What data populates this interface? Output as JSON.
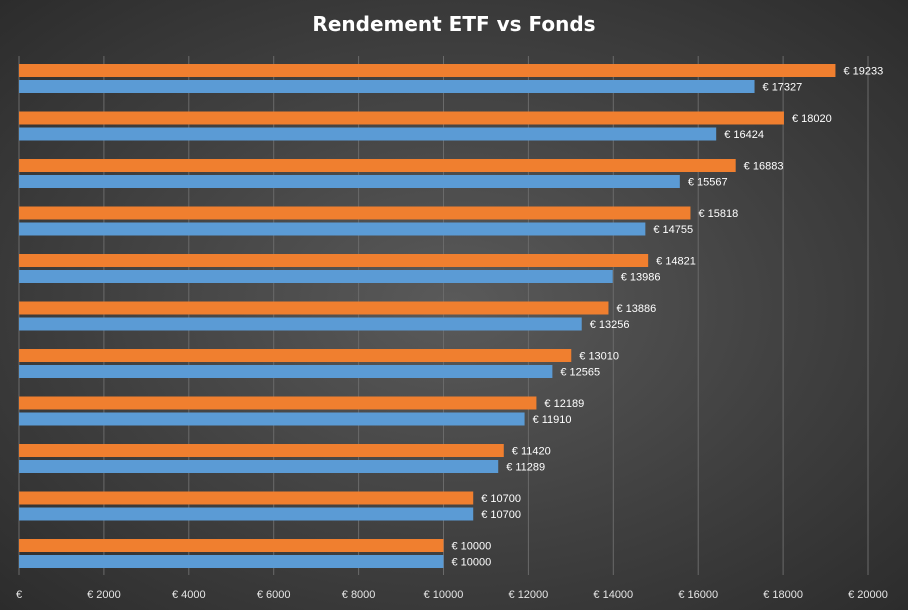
{
  "chart_data": {
    "type": "bar",
    "orientation": "horizontal",
    "title": "Rendement ETF vs Fonds",
    "xlabel": "",
    "ylabel": "",
    "xlim": [
      0,
      20000
    ],
    "x_ticks": [
      0,
      2000,
      4000,
      6000,
      8000,
      10000,
      12000,
      14000,
      16000,
      18000,
      20000
    ],
    "x_tick_labels": [
      "€",
      "€ 2000",
      "€ 4000",
      "€ 6000",
      "€ 8000",
      "€ 10000",
      "€ 12000",
      "€ 14000",
      "€ 16000",
      "€ 18000",
      "€ 20000"
    ],
    "value_prefix": "€ ",
    "grid": true,
    "legend": "none",
    "series": [
      {
        "color": "#f07f2f",
        "values": [
          19233,
          18020,
          16883,
          15818,
          14821,
          13886,
          13010,
          12189,
          11420,
          10700,
          10000
        ]
      },
      {
        "color": "#5b9bd5",
        "values": [
          17327,
          16424,
          15567,
          14755,
          13986,
          13256,
          12565,
          11910,
          11289,
          10700,
          10000
        ]
      }
    ]
  }
}
